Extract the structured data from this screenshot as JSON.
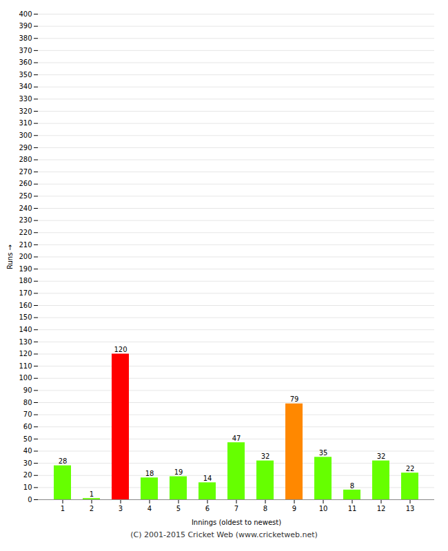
{
  "chart_data": {
    "type": "bar",
    "xlabel": "Innings (oldest to newest)",
    "ylabel": "Runs",
    "categories": [
      1,
      2,
      3,
      4,
      5,
      6,
      7,
      8,
      9,
      10,
      11,
      12,
      13
    ],
    "values": [
      28,
      1,
      120,
      18,
      19,
      14,
      47,
      32,
      79,
      35,
      8,
      32,
      22
    ],
    "colors": [
      "#66ff00",
      "#66ff00",
      "#ff0000",
      "#66ff00",
      "#66ff00",
      "#66ff00",
      "#66ff00",
      "#66ff00",
      "#ff8800",
      "#66ff00",
      "#66ff00",
      "#66ff00",
      "#66ff00"
    ],
    "ylim": [
      0,
      400
    ],
    "yticks": [
      0,
      10,
      20,
      30,
      40,
      50,
      60,
      70,
      80,
      90,
      100,
      110,
      120,
      130,
      140,
      150,
      160,
      170,
      180,
      190,
      200,
      210,
      220,
      230,
      240,
      250,
      260,
      270,
      280,
      290,
      300,
      310,
      320,
      330,
      340,
      350,
      360,
      370,
      380,
      390,
      400
    ],
    "grid": true,
    "data_labels": true,
    "footer": "(C) 2001-2015 Cricket Web (www.cricketweb.net)"
  }
}
